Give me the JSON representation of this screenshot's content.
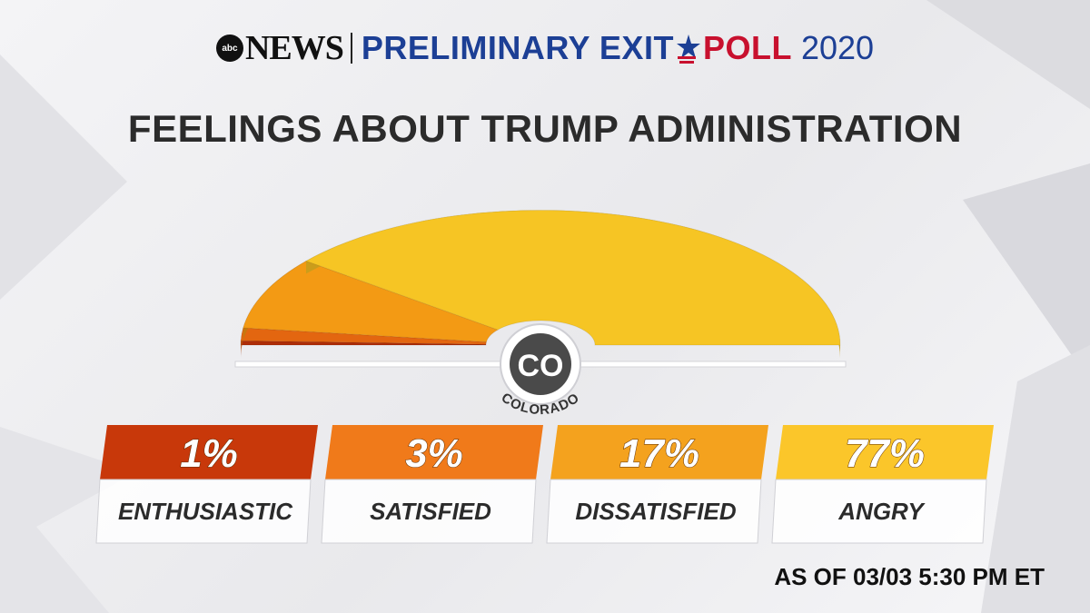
{
  "header": {
    "logo_small": "abc",
    "logo_word": "NEWS",
    "title_part1": "PRELIMINARY EXIT",
    "title_part2": "POLL",
    "year": "2020"
  },
  "chart_data": {
    "type": "gauge",
    "title": "FEELINGS ABOUT TRUMP ADMINISTRATION",
    "state_code": "CO",
    "state_name": "COLORADO",
    "categories": [
      "ENTHUSIASTIC",
      "SATISFIED",
      "DISSATISFIED",
      "ANGRY"
    ],
    "values": [
      1,
      3,
      17,
      77
    ],
    "value_labels": [
      "1%",
      "3%",
      "17%",
      "77%"
    ],
    "colors": [
      "#c8380a",
      "#f07a1a",
      "#f4a21e",
      "#fbc62a"
    ],
    "gauge_colors": {
      "ENTHUSIASTIC": "#ad2d08",
      "SATISFIED": "#e36610",
      "DISSATISFIED": "#f39a14",
      "ANGRY": "#f6c524"
    }
  },
  "footnote": "AS OF 03/03 5:30 PM ET"
}
